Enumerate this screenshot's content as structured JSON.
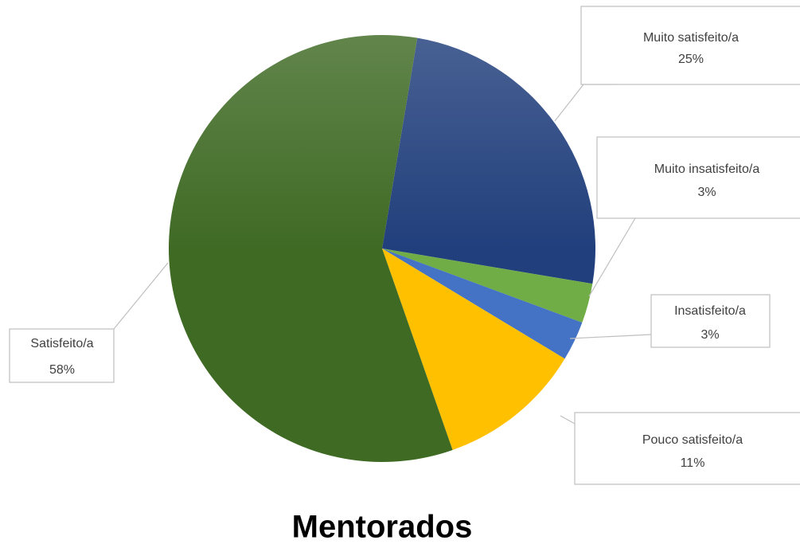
{
  "chart_data": {
    "type": "pie",
    "title": "Mentorados",
    "categories": [
      "Muito satisfeito/a",
      "Muito insatisfeito/a",
      "Insatisfeito/a",
      "Pouco satisfeito/a",
      "Satisfeito/a"
    ],
    "values": [
      25,
      3,
      3,
      11,
      58
    ],
    "value_labels": [
      "25%",
      "3%",
      "3%",
      "11%",
      "58%"
    ],
    "colors": [
      "#213f7c",
      "#70ad47",
      "#4472c4",
      "#ffc000",
      "#3f6a24"
    ]
  }
}
